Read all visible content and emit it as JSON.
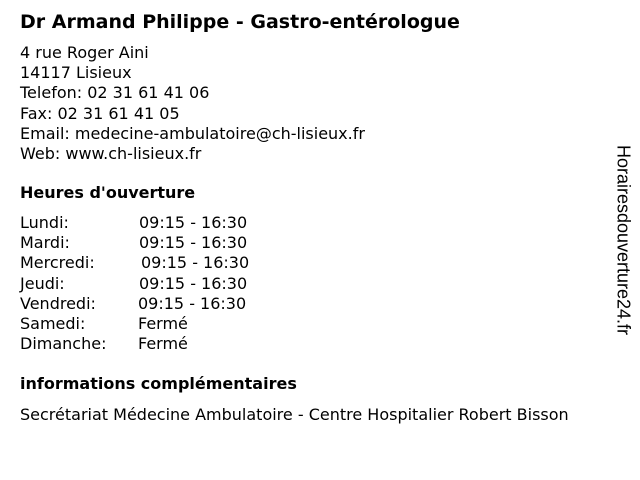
{
  "title": "Dr Armand Philippe - Gastro-entérologue",
  "contact": {
    "address": "4 rue Roger Aini",
    "city": "14117 Lisieux",
    "phone": "Telefon: 02 31 61 41 06",
    "fax": "Fax: 02 31 61 41 05",
    "email": "Email: medecine-ambulatoire@ch-lisieux.fr",
    "web": "Web: www.ch-lisieux.fr"
  },
  "hours_heading": "Heures d'ouverture",
  "hours": [
    {
      "day": "Lundi:",
      "time": "09:15 - 16:30"
    },
    {
      "day": "Mardi:",
      "time": "09:15 - 16:30"
    },
    {
      "day": "Mercredi:",
      "time": "09:15 - 16:30"
    },
    {
      "day": "Jeudi:",
      "time": "09:15 - 16:30"
    },
    {
      "day": "Vendredi:",
      "time": "09:15 - 16:30"
    },
    {
      "day": "Samedi:",
      "time": "Fermé"
    },
    {
      "day": "Dimanche:",
      "time": "Fermé"
    }
  ],
  "info_heading": "informations complémentaires",
  "info_text": "Secrétariat Médecine Ambulatoire - Centre Hospitalier Robert Bisson",
  "watermark": "Horairesdouverture24.fr"
}
